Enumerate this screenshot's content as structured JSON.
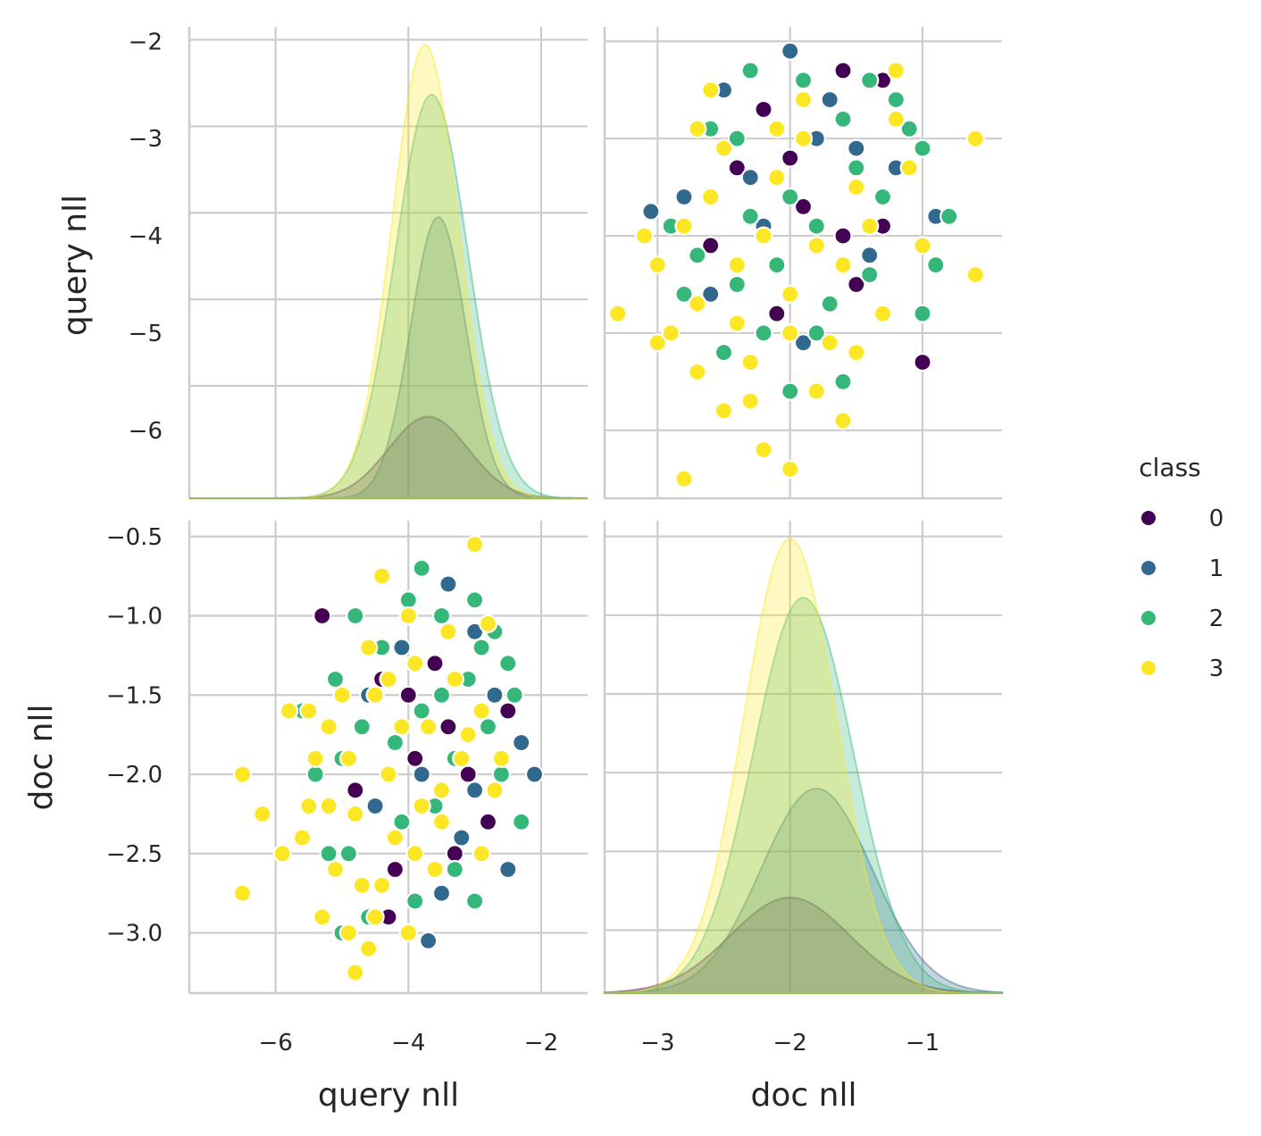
{
  "chart_data": {
    "type": "pairplot",
    "variables": [
      "query nll",
      "doc nll"
    ],
    "axis_labels": {
      "x": [
        "query nll",
        "doc nll"
      ],
      "y": [
        "query nll",
        "doc nll"
      ]
    },
    "ranges": {
      "query nll": [
        -7.3,
        -1.3
      ],
      "doc nll": [
        -3.4,
        -0.4
      ]
    },
    "diag_ranges": {
      "query nll": [
        -6.7,
        -1.85
      ],
      "doc nll": [
        -3.38,
        -0.4
      ]
    },
    "ticks": {
      "query nll": {
        "values": [
          -6,
          -4,
          -2
        ],
        "labels": [
          "−6",
          "−4",
          "−2"
        ]
      },
      "query nll_y": {
        "values": [
          -6,
          -5,
          -4,
          -3,
          -2
        ],
        "labels": [
          "−6",
          "−5",
          "−4",
          "−3",
          "−2"
        ]
      },
      "doc nll": {
        "values": [
          -3,
          -2,
          -1
        ],
        "labels": [
          "−3",
          "−2",
          "−1"
        ]
      },
      "doc nll_y": {
        "values": [
          -3.0,
          -2.5,
          -2.0,
          -1.5,
          -1.0,
          -0.5
        ],
        "labels": [
          "−3.0",
          "−2.5",
          "−2.0",
          "−1.5",
          "−1.0",
          "−0.5"
        ]
      }
    },
    "grid": true,
    "legend": {
      "title": "class",
      "placement": "right"
    },
    "series": [
      {
        "name": "0",
        "color": "#440154",
        "kde_query": {
          "mean": -3.7,
          "sd": 0.6,
          "peak": 0.18
        },
        "kde_doc": {
          "mean": -2.0,
          "sd": 0.45,
          "peak": 0.21
        }
      },
      {
        "name": "1",
        "color": "#31688e",
        "kde_query": {
          "mean": -3.55,
          "sd": 0.42,
          "peak": 0.62
        },
        "kde_doc": {
          "mean": -1.8,
          "sd": 0.42,
          "peak": 0.45
        }
      },
      {
        "name": "2",
        "color": "#35b779",
        "kde_query": {
          "mean": -3.65,
          "sd": 0.55,
          "peak": 0.89
        },
        "kde_doc": {
          "mean": -1.9,
          "sd": 0.38,
          "peak": 0.87
        }
      },
      {
        "name": "3",
        "color": "#fde725",
        "kde_query": {
          "mean": -3.75,
          "sd": 0.5,
          "peak": 1.0
        },
        "kde_doc": {
          "mean": -2.0,
          "sd": 0.35,
          "peak": 1.0
        }
      }
    ],
    "scatter": {
      "query_vs_doc": [
        [
          -5.3,
          -1.0,
          0
        ],
        [
          -4.4,
          -1.4,
          0
        ],
        [
          -4.0,
          -1.5,
          0
        ],
        [
          -3.4,
          -1.7,
          0
        ],
        [
          -2.5,
          -1.6,
          0
        ],
        [
          -4.8,
          -2.1,
          0
        ],
        [
          -3.3,
          -2.5,
          0
        ],
        [
          -2.8,
          -2.3,
          0
        ],
        [
          -4.2,
          -2.6,
          0
        ],
        [
          -3.6,
          -1.3,
          0
        ],
        [
          -3.9,
          -1.9,
          0
        ],
        [
          -3.1,
          -2.0,
          0
        ],
        [
          -4.3,
          -2.9,
          0
        ],
        [
          -2.6,
          -1.9,
          0
        ],
        [
          -4.6,
          -1.5,
          1
        ],
        [
          -3.7,
          -3.05,
          1
        ],
        [
          -2.1,
          -2.0,
          1
        ],
        [
          -3.5,
          -2.75,
          1
        ],
        [
          -2.3,
          -1.8,
          1
        ],
        [
          -3.2,
          -2.4,
          1
        ],
        [
          -3.0,
          -2.1,
          1
        ],
        [
          -4.1,
          -1.2,
          1
        ],
        [
          -3.4,
          -0.8,
          1
        ],
        [
          -2.7,
          -1.5,
          1
        ],
        [
          -3.8,
          -2.0,
          1
        ],
        [
          -3.0,
          -1.1,
          1
        ],
        [
          -2.5,
          -2.6,
          1
        ],
        [
          -4.5,
          -2.2,
          1
        ],
        [
          -3.8,
          -0.7,
          2
        ],
        [
          -4.8,
          -1.0,
          2
        ],
        [
          -5.6,
          -1.6,
          2
        ],
        [
          -5.1,
          -1.4,
          2
        ],
        [
          -2.3,
          -2.3,
          2
        ],
        [
          -2.6,
          -2.0,
          2
        ],
        [
          -4.0,
          -0.9,
          2
        ],
        [
          -3.5,
          -1.0,
          2
        ],
        [
          -3.0,
          -0.9,
          2
        ],
        [
          -4.6,
          -2.9,
          2
        ],
        [
          -3.3,
          -2.6,
          2
        ],
        [
          -5.0,
          -3.0,
          2
        ],
        [
          -5.4,
          -2.0,
          2
        ],
        [
          -4.2,
          -1.8,
          2
        ],
        [
          -3.8,
          -1.6,
          2
        ],
        [
          -3.1,
          -1.4,
          2
        ],
        [
          -2.8,
          -1.7,
          2
        ],
        [
          -4.9,
          -2.5,
          2
        ],
        [
          -3.6,
          -2.2,
          2
        ],
        [
          -2.9,
          -1.2,
          2
        ],
        [
          -4.4,
          -1.2,
          2
        ],
        [
          -3.3,
          -1.9,
          2
        ],
        [
          -2.4,
          -1.5,
          2
        ],
        [
          -3.9,
          -2.8,
          2
        ],
        [
          -5.2,
          -2.5,
          2
        ],
        [
          -4.7,
          -1.7,
          2
        ],
        [
          -2.7,
          -1.1,
          2
        ],
        [
          -3.5,
          -1.5,
          2
        ],
        [
          -4.1,
          -2.3,
          2
        ],
        [
          -3.0,
          -2.8,
          2
        ],
        [
          -5.0,
          -1.9,
          2
        ],
        [
          -2.5,
          -1.3,
          2
        ],
        [
          -3.0,
          -0.55,
          3
        ],
        [
          -4.4,
          -0.75,
          3
        ],
        [
          -6.5,
          -2.0,
          3
        ],
        [
          -6.2,
          -2.25,
          3
        ],
        [
          -6.5,
          -2.75,
          3
        ],
        [
          -5.8,
          -1.6,
          3
        ],
        [
          -5.9,
          -2.5,
          3
        ],
        [
          -4.8,
          -3.25,
          3
        ],
        [
          -4.6,
          -3.1,
          3
        ],
        [
          -4.0,
          -1.0,
          3
        ],
        [
          -3.4,
          -1.1,
          3
        ],
        [
          -2.9,
          -1.6,
          3
        ],
        [
          -3.5,
          -2.1,
          3
        ],
        [
          -5.5,
          -1.6,
          3
        ],
        [
          -5.2,
          -2.2,
          3
        ],
        [
          -4.9,
          -3.0,
          3
        ],
        [
          -5.1,
          -2.6,
          3
        ],
        [
          -5.4,
          -1.9,
          3
        ],
        [
          -4.3,
          -2.0,
          3
        ],
        [
          -4.7,
          -2.7,
          3
        ],
        [
          -4.5,
          -1.5,
          3
        ],
        [
          -3.9,
          -1.3,
          3
        ],
        [
          -3.7,
          -1.7,
          3
        ],
        [
          -3.2,
          -1.9,
          3
        ],
        [
          -2.9,
          -2.5,
          3
        ],
        [
          -2.6,
          -1.9,
          3
        ],
        [
          -4.2,
          -2.4,
          3
        ],
        [
          -4.0,
          -3.0,
          3
        ],
        [
          -5.0,
          -1.5,
          3
        ],
        [
          -4.6,
          -1.2,
          3
        ],
        [
          -3.6,
          -2.6,
          3
        ],
        [
          -5.3,
          -2.9,
          3
        ],
        [
          -4.4,
          -2.7,
          3
        ],
        [
          -3.8,
          -2.2,
          3
        ],
        [
          -3.3,
          -1.4,
          3
        ],
        [
          -2.8,
          -1.05,
          3
        ],
        [
          -5.6,
          -2.4,
          3
        ],
        [
          -4.9,
          -1.9,
          3
        ],
        [
          -4.1,
          -1.7,
          3
        ],
        [
          -3.5,
          -2.3,
          3
        ],
        [
          -2.7,
          -2.1,
          3
        ],
        [
          -4.8,
          -2.25,
          3
        ],
        [
          -5.2,
          -1.7,
          3
        ],
        [
          -3.9,
          -2.5,
          3
        ],
        [
          -3.1,
          -1.75,
          3
        ],
        [
          -4.3,
          -1.4,
          3
        ],
        [
          -5.5,
          -2.2,
          3
        ],
        [
          -4.5,
          -2.9,
          3
        ]
      ],
      "doc_vs_query": [
        [
          -1.6,
          -2.3,
          0
        ],
        [
          -1.3,
          -2.4,
          0
        ],
        [
          -1.0,
          -5.3,
          0
        ],
        [
          -2.4,
          -3.3,
          0
        ],
        [
          -2.6,
          -4.1,
          0
        ],
        [
          -2.1,
          -4.8,
          0
        ],
        [
          -1.5,
          -4.5,
          0
        ],
        [
          -1.9,
          -3.7,
          0
        ],
        [
          -2.2,
          -2.7,
          0
        ],
        [
          -1.6,
          -4.0,
          0
        ],
        [
          -2.0,
          -3.2,
          0
        ],
        [
          -1.3,
          -3.9,
          0
        ],
        [
          -3.05,
          -3.75,
          1
        ],
        [
          -2.0,
          -2.1,
          1
        ],
        [
          -2.5,
          -2.5,
          1
        ],
        [
          -2.8,
          -3.6,
          1
        ],
        [
          -1.9,
          -5.1,
          1
        ],
        [
          -1.8,
          -3.0,
          1
        ],
        [
          -1.5,
          -3.1,
          1
        ],
        [
          -1.2,
          -3.3,
          1
        ],
        [
          -0.9,
          -3.8,
          1
        ],
        [
          -2.3,
          -3.4,
          1
        ],
        [
          -2.6,
          -4.6,
          1
        ],
        [
          -1.7,
          -2.6,
          1
        ],
        [
          -2.2,
          -3.9,
          1
        ],
        [
          -1.4,
          -4.2,
          1
        ],
        [
          -2.3,
          -2.3,
          2
        ],
        [
          -1.6,
          -2.8,
          2
        ],
        [
          -0.8,
          -3.8,
          2
        ],
        [
          -1.0,
          -4.8,
          2
        ],
        [
          -1.6,
          -5.5,
          2
        ],
        [
          -1.8,
          -5.0,
          2
        ],
        [
          -2.0,
          -5.6,
          2
        ],
        [
          -2.5,
          -5.2,
          2
        ],
        [
          -2.8,
          -4.6,
          2
        ],
        [
          -2.9,
          -3.9,
          2
        ],
        [
          -2.4,
          -3.0,
          2
        ],
        [
          -1.2,
          -2.6,
          2
        ],
        [
          -1.0,
          -3.1,
          2
        ],
        [
          -1.4,
          -4.4,
          2
        ],
        [
          -2.1,
          -4.3,
          2
        ],
        [
          -2.6,
          -2.9,
          2
        ],
        [
          -1.9,
          -2.4,
          2
        ],
        [
          -1.3,
          -3.6,
          2
        ],
        [
          -1.7,
          -4.7,
          2
        ],
        [
          -2.2,
          -5.0,
          2
        ],
        [
          -2.7,
          -4.2,
          2
        ],
        [
          -1.5,
          -3.3,
          2
        ],
        [
          -2.0,
          -3.6,
          2
        ],
        [
          -0.9,
          -4.3,
          2
        ],
        [
          -1.1,
          -2.9,
          2
        ],
        [
          -2.4,
          -4.5,
          2
        ],
        [
          -1.8,
          -3.9,
          2
        ],
        [
          -2.3,
          -3.8,
          2
        ],
        [
          -1.4,
          -2.4,
          2
        ],
        [
          -2.8,
          -6.5,
          3
        ],
        [
          -2.0,
          -6.4,
          3
        ],
        [
          -2.2,
          -6.2,
          3
        ],
        [
          -0.6,
          -3.0,
          3
        ],
        [
          -0.6,
          -4.4,
          3
        ],
        [
          -1.6,
          -5.9,
          3
        ],
        [
          -2.5,
          -5.8,
          3
        ],
        [
          -3.3,
          -4.8,
          3
        ],
        [
          -3.0,
          -5.1,
          3
        ],
        [
          -2.7,
          -5.4,
          3
        ],
        [
          -2.3,
          -5.7,
          3
        ],
        [
          -1.8,
          -5.6,
          3
        ],
        [
          -1.9,
          -2.6,
          3
        ],
        [
          -2.6,
          -2.5,
          3
        ],
        [
          -1.2,
          -2.3,
          3
        ],
        [
          -1.0,
          -4.1,
          3
        ],
        [
          -1.5,
          -3.5,
          3
        ],
        [
          -2.1,
          -3.4,
          3
        ],
        [
          -2.8,
          -3.9,
          3
        ],
        [
          -3.0,
          -4.3,
          3
        ],
        [
          -2.4,
          -4.9,
          3
        ],
        [
          -1.7,
          -5.1,
          3
        ],
        [
          -1.3,
          -4.8,
          3
        ],
        [
          -2.2,
          -4.0,
          3
        ],
        [
          -2.5,
          -3.1,
          3
        ],
        [
          -1.9,
          -3.0,
          3
        ],
        [
          -1.4,
          -3.9,
          3
        ],
        [
          -2.0,
          -4.6,
          3
        ],
        [
          -2.7,
          -4.7,
          3
        ],
        [
          -3.1,
          -4.0,
          3
        ],
        [
          -1.1,
          -3.3,
          3
        ],
        [
          -1.6,
          -4.3,
          3
        ],
        [
          -2.3,
          -5.3,
          3
        ],
        [
          -2.9,
          -5.0,
          3
        ],
        [
          -1.2,
          -2.8,
          3
        ],
        [
          -2.1,
          -2.9,
          3
        ],
        [
          -2.6,
          -3.6,
          3
        ],
        [
          -1.8,
          -4.1,
          3
        ],
        [
          -2.4,
          -4.3,
          3
        ],
        [
          -1.5,
          -5.2,
          3
        ],
        [
          -2.0,
          -5.0,
          3
        ],
        [
          -2.7,
          -2.9,
          3
        ]
      ]
    }
  }
}
